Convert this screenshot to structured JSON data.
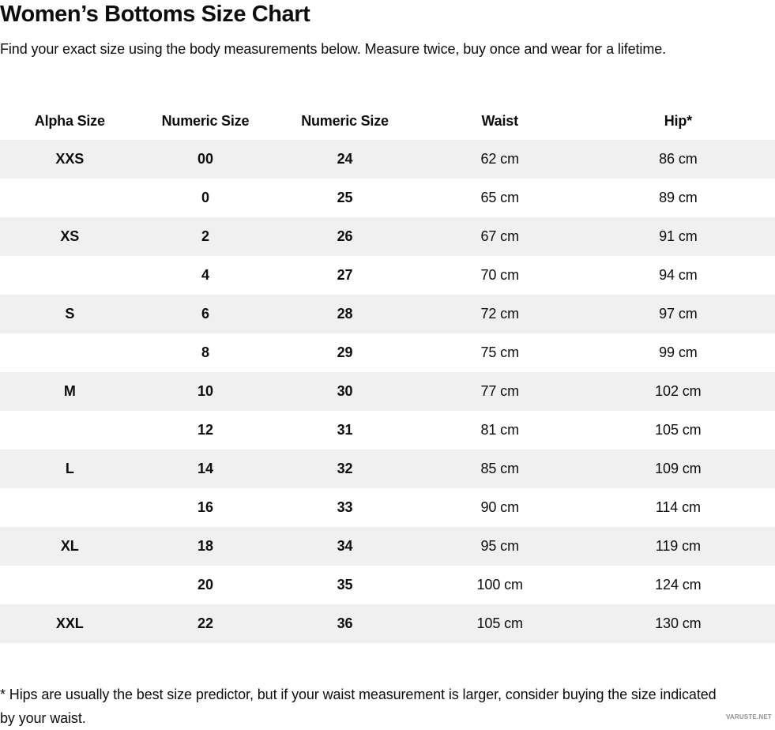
{
  "page": {
    "title": "Women’s Bottoms Size Chart",
    "subtitle": "Find your exact size using the body measurements below. Measure twice, buy once and wear for a lifetime.",
    "footnote": "* Hips are usually the best size predictor, but if your waist measurement is larger, consider buying the size indicated by your waist.",
    "watermark": "VARUSTE.NET"
  },
  "colors": {
    "row_stripe": "#f0f0f0",
    "text": "#0d0d0d",
    "watermark": "#8f8f8f"
  },
  "chart_data": {
    "type": "table",
    "title": "Women’s Bottoms Size Chart",
    "headers": [
      "Alpha Size",
      "Numeric Size",
      "Numeric Size",
      "Waist",
      "Hip*"
    ],
    "rows": [
      [
        "XXS",
        "00",
        "24",
        "62 cm",
        "86 cm"
      ],
      [
        "",
        "0",
        "25",
        "65 cm",
        "89 cm"
      ],
      [
        "XS",
        "2",
        "26",
        "67 cm",
        "91 cm"
      ],
      [
        "",
        "4",
        "27",
        "70 cm",
        "94 cm"
      ],
      [
        "S",
        "6",
        "28",
        "72 cm",
        "97 cm"
      ],
      [
        "",
        "8",
        "29",
        "75 cm",
        "99 cm"
      ],
      [
        "M",
        "10",
        "30",
        "77 cm",
        "102 cm"
      ],
      [
        "",
        "12",
        "31",
        "81 cm",
        "105 cm"
      ],
      [
        "L",
        "14",
        "32",
        "85 cm",
        "109 cm"
      ],
      [
        "",
        "16",
        "33",
        "90 cm",
        "114 cm"
      ],
      [
        "XL",
        "18",
        "34",
        "95 cm",
        "119 cm"
      ],
      [
        "",
        "20",
        "35",
        "100 cm",
        "124 cm"
      ],
      [
        "XXL",
        "22",
        "36",
        "105 cm",
        "130 cm"
      ]
    ]
  }
}
